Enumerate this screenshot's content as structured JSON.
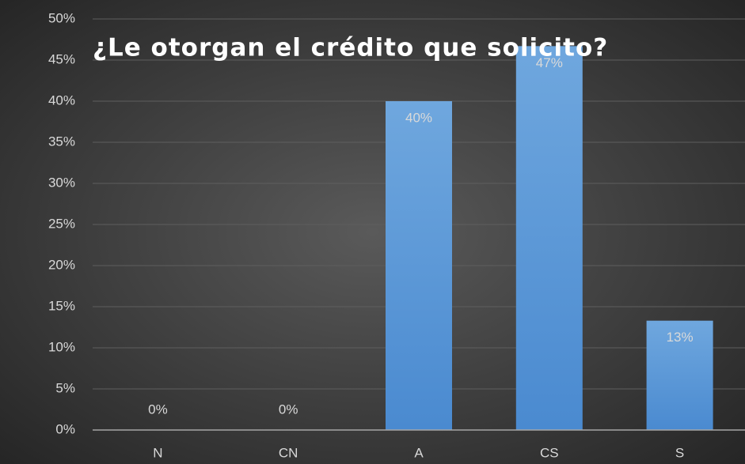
{
  "chart_data": {
    "type": "bar",
    "title": "¿Le otorgan el crédito que solicito?",
    "categories": [
      "N",
      "CN",
      "A",
      "CS",
      "S"
    ],
    "values": [
      0,
      0,
      40,
      46.7,
      13.3
    ],
    "value_labels": [
      "0%",
      "0%",
      "40%",
      "47%",
      "13%"
    ],
    "color": "#5b9bd5",
    "ylim": [
      0,
      50
    ],
    "yticks": [
      {
        "value": 0,
        "label": "0%"
      },
      {
        "value": 5,
        "label": "5%"
      },
      {
        "value": 10,
        "label": "10%"
      },
      {
        "value": 15,
        "label": "15%"
      },
      {
        "value": 20,
        "label": "20%"
      },
      {
        "value": 25,
        "label": "25%"
      },
      {
        "value": 30,
        "label": "30%"
      },
      {
        "value": 35,
        "label": "35%"
      },
      {
        "value": 40,
        "label": "40%"
      },
      {
        "value": 45,
        "label": "45%"
      },
      {
        "value": 50,
        "label": "50%"
      }
    ],
    "grid": true
  }
}
